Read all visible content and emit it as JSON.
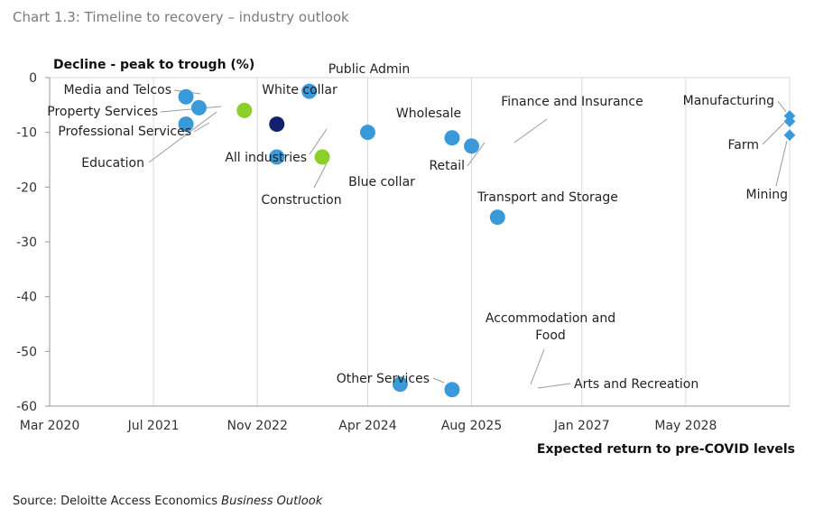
{
  "title": "Chart 1.3: Timeline to recovery – industry outlook",
  "source": {
    "prefix": "Source: Deloitte Access Economics ",
    "publication": "Business Outlook"
  },
  "colors": {
    "industry": "#3a9ad9",
    "collar": "#8ccf2a",
    "all_industries": "#12206e",
    "grid": "#d9d9d9"
  },
  "chart_data": {
    "type": "scatter",
    "ylabel": "Decline  - peak to trough (%)",
    "xlabel": "Expected return to pre-COVID levels",
    "ylim": [
      -60,
      0
    ],
    "yticks": [
      0,
      -10,
      -20,
      -30,
      -40,
      -50,
      -60
    ],
    "xlim": [
      "2020-03",
      "2029-09"
    ],
    "xticks": [
      "Mar 2020",
      "Jul 2021",
      "Nov 2022",
      "Apr 2024",
      "Aug 2025",
      "Jan 2027",
      "May 2028"
    ],
    "grid": "vertical",
    "points": [
      {
        "label": "Media and Telcos",
        "x": "2021-12",
        "y": -3.5,
        "group": "industry"
      },
      {
        "label": "Property Services",
        "x": "2022-02",
        "y": -5.5,
        "group": "industry"
      },
      {
        "label": "Professional Services",
        "x": "2021-12",
        "y": -8.5,
        "group": "industry"
      },
      {
        "label": "Education",
        "x": "2021-12",
        "y": -8.5,
        "group": "industry"
      },
      {
        "label": "White collar",
        "x": "2022-09",
        "y": -6.0,
        "group": "collar"
      },
      {
        "label": "All industries",
        "x": "2023-02",
        "y": -8.5,
        "group": "all_industries"
      },
      {
        "label": "Construction",
        "x": "2023-02",
        "y": -14.5,
        "group": "industry"
      },
      {
        "label": "Public Admin",
        "x": "2023-07",
        "y": -2.5,
        "group": "industry"
      },
      {
        "label": "Blue collar",
        "x": "2023-09",
        "y": -14.5,
        "group": "collar"
      },
      {
        "label": "Wholesale",
        "x": "2024-04",
        "y": -10.0,
        "group": "industry"
      },
      {
        "label": "Retail",
        "x": "2025-05",
        "y": -11.0,
        "group": "industry"
      },
      {
        "label": "Finance and Insurance",
        "x": "2025-08",
        "y": -12.5,
        "group": "industry"
      },
      {
        "label": "Transport and Storage",
        "x": "2025-12",
        "y": -25.5,
        "group": "industry"
      },
      {
        "label": "Other Services",
        "x": "2024-09",
        "y": -56.0,
        "group": "industry"
      },
      {
        "label": "Accommodation and Food",
        "x": "2025-05",
        "y": -57.0,
        "group": "industry"
      },
      {
        "label": "Arts and Recreation",
        "x": "2025-05",
        "y": -57.0,
        "group": "industry"
      },
      {
        "label": "Manufacturing",
        "x": "2029-09",
        "y": -7.0,
        "group": "industry_edge"
      },
      {
        "label": "Farm",
        "x": "2029-09",
        "y": -8.0,
        "group": "industry_edge"
      },
      {
        "label": "Mining",
        "x": "2029-09",
        "y": -10.5,
        "group": "industry_edge"
      }
    ]
  }
}
